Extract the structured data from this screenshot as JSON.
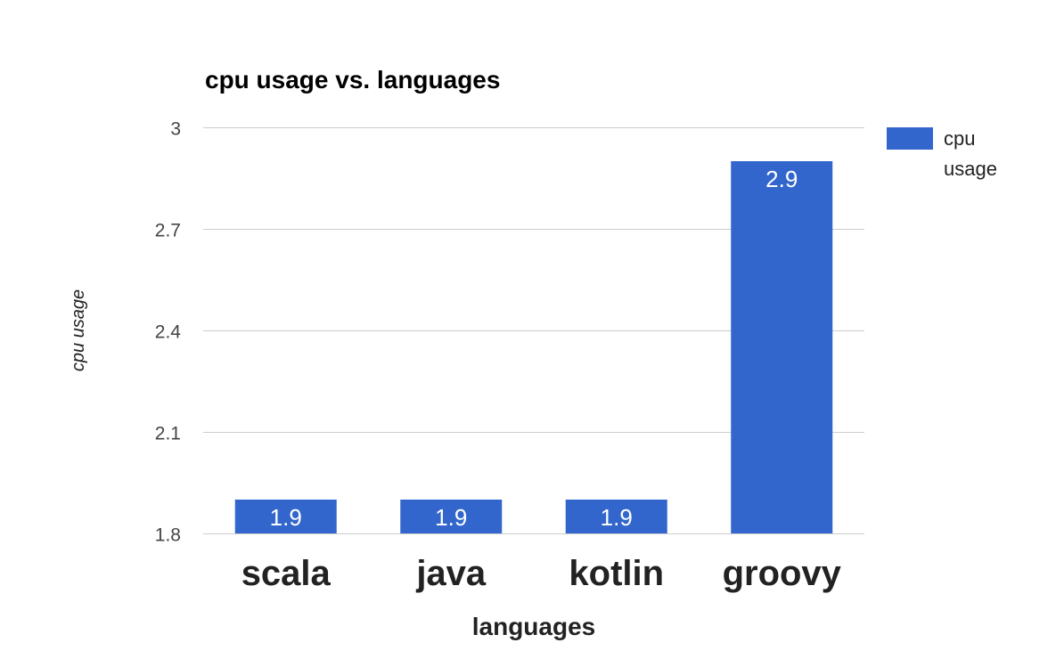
{
  "chart_data": {
    "type": "bar",
    "title": "cpu usage vs. languages",
    "xlabel": "languages",
    "ylabel": "cpu usage",
    "categories": [
      "scala",
      "java",
      "kotlin",
      "groovy"
    ],
    "series": [
      {
        "name": "cpu usage",
        "values": [
          1.9,
          1.9,
          1.9,
          2.9
        ],
        "data_labels": [
          "1.9",
          "1.9",
          "1.9",
          "2.9"
        ],
        "color": "#3366cc"
      }
    ],
    "ylim": [
      1.8,
      3
    ],
    "y_ticks": [
      1.8,
      2.1,
      2.4,
      2.7,
      3
    ],
    "y_tick_labels": [
      "1.8",
      "2.1",
      "2.4",
      "2.7",
      "3"
    ],
    "grid": true,
    "legend": {
      "position": "right",
      "label_lines": [
        "cpu",
        "usage"
      ]
    },
    "colors": {
      "bar": "#3366cc",
      "gridline": "#cccccc",
      "axis_text": "#444444",
      "title_text": "#000000",
      "category_text": "#222222",
      "bar_label_text": "#ffffff"
    }
  }
}
